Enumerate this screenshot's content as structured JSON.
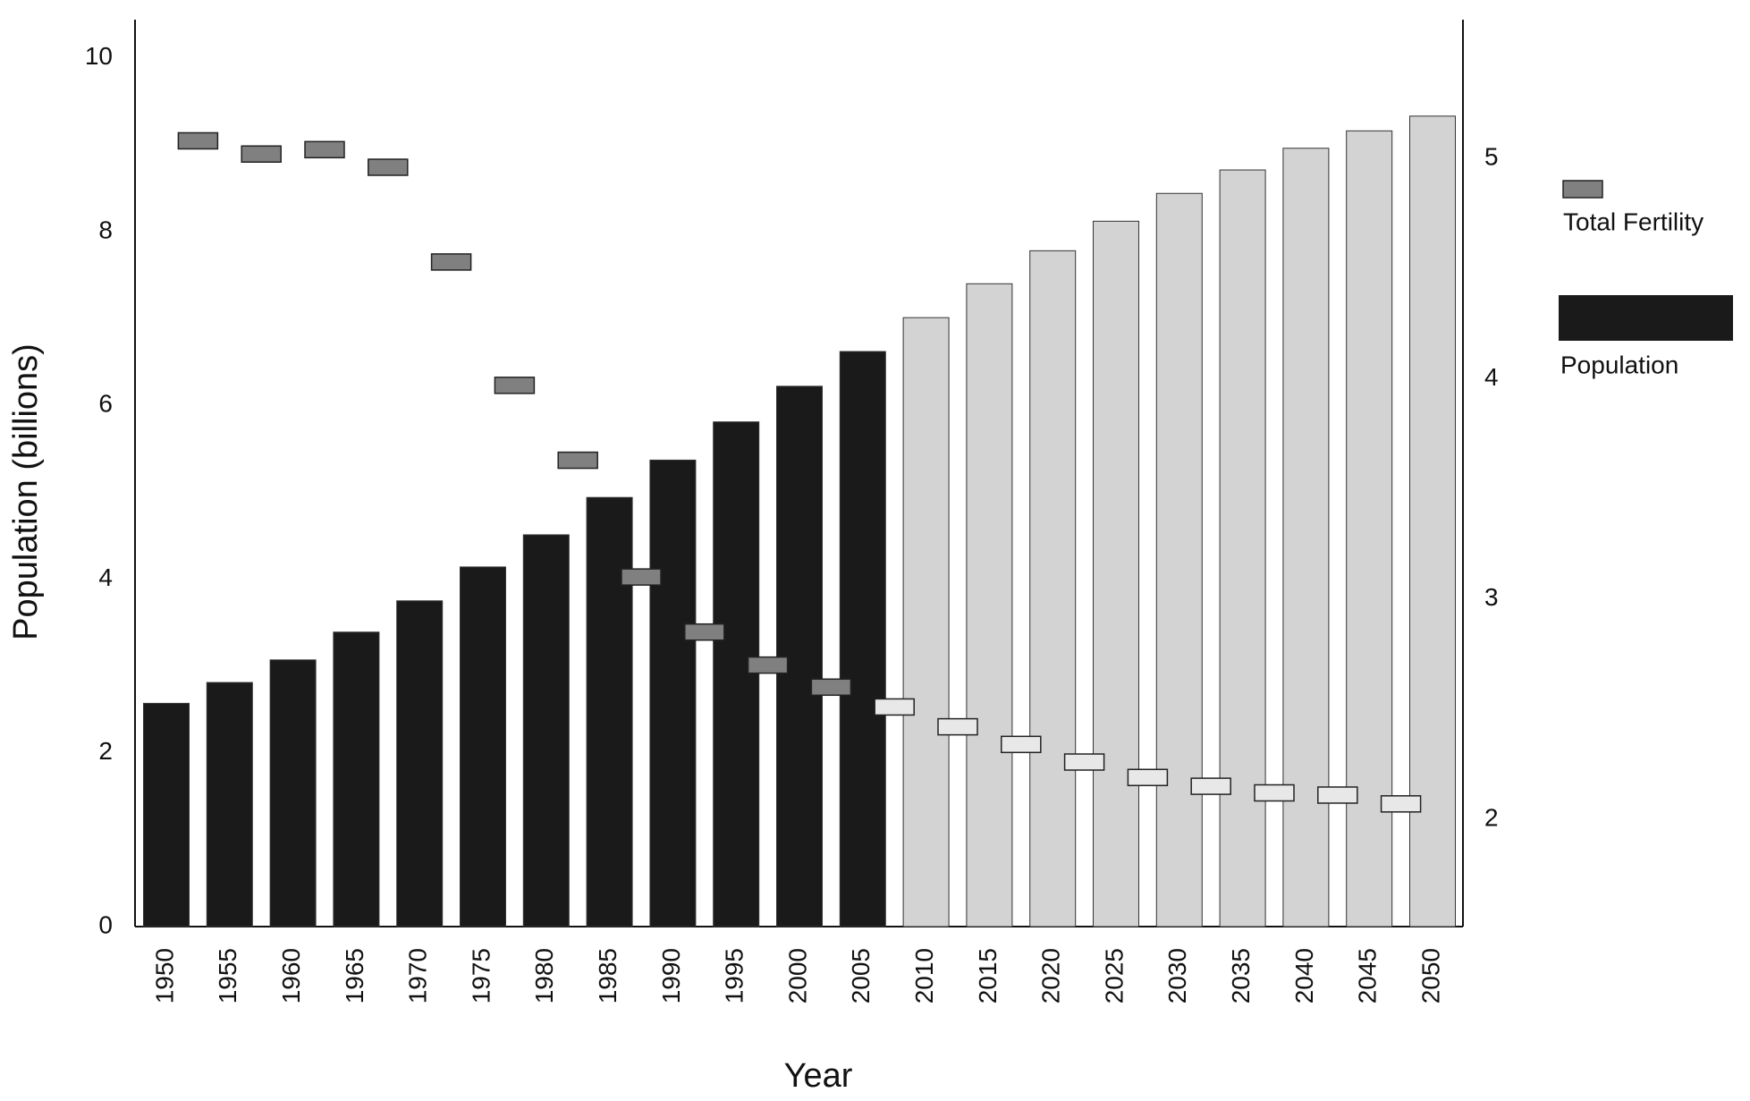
{
  "chart_data": {
    "type": "bar",
    "x_label": "Year",
    "y_label": "Population (billions)",
    "categories": [
      1950,
      1955,
      1960,
      1965,
      1970,
      1975,
      1980,
      1985,
      1990,
      1995,
      2000,
      2005,
      2010,
      2015,
      2020,
      2025,
      2030,
      2035,
      2040,
      2045,
      2050
    ],
    "series": [
      {
        "name": "Population",
        "type": "bar",
        "color": "#1a1a1a",
        "colors": [
          "#1a1a1a",
          "#1a1a1a",
          "#1a1a1a",
          "#1a1a1a",
          "#1a1a1a",
          "#1a1a1a",
          "#1a1a1a",
          "#1a1a1a",
          "#1a1a1a",
          "#1a1a1a",
          "#1a1a1a",
          "#1a1a1a",
          "#d3d3d3",
          "#d3d3d3",
          "#d3d3d3",
          "#d3d3d3",
          "#d3d3d3",
          "#d3d3d3",
          "#d3d3d3",
          "#d3d3d3",
          "#d3d3d3"
        ],
        "values": [
          2.57,
          2.81,
          3.07,
          3.39,
          3.75,
          4.14,
          4.51,
          4.94,
          5.37,
          5.81,
          6.22,
          6.62,
          7.01,
          7.4,
          7.78,
          8.12,
          8.44,
          8.71,
          8.96,
          9.16,
          9.33
        ]
      },
      {
        "name": "Total Fertility",
        "type": "marker",
        "axis": "y2",
        "color": "#808080",
        "colors": [
          "#808080",
          "#808080",
          "#808080",
          "#808080",
          "#808080",
          "#808080",
          "#808080",
          "#808080",
          "#808080",
          "#808080",
          "#808080",
          "#e8e8e8",
          "#e8e8e8",
          "#e8e8e8",
          "#e8e8e8",
          "#e8e8e8",
          "#e8e8e8",
          "#e8e8e8",
          "#e8e8e8",
          "#e8e8e8"
        ],
        "x": [
          1952.5,
          1957.5,
          1962.5,
          1967.5,
          1972.5,
          1977.5,
          1982.5,
          1987.5,
          1992.5,
          1997.5,
          2002.5,
          2007.5,
          2012.5,
          2017.5,
          2022.5,
          2027.5,
          2032.5,
          2037.5,
          2042.5,
          2047.5
        ],
        "values": [
          5.08,
          5.02,
          5.04,
          4.96,
          4.53,
          3.97,
          3.63,
          3.1,
          2.85,
          2.7,
          2.6,
          2.51,
          2.42,
          2.34,
          2.26,
          2.19,
          2.15,
          2.12,
          2.11,
          2.07
        ]
      }
    ],
    "ylim": [
      0,
      10.44
    ],
    "yticks": [
      0,
      2,
      4,
      6,
      8,
      10
    ],
    "y2lim": [
      1.513,
      5.63
    ],
    "y2ticks": [
      2,
      3,
      4,
      5
    ],
    "grid": false
  }
}
